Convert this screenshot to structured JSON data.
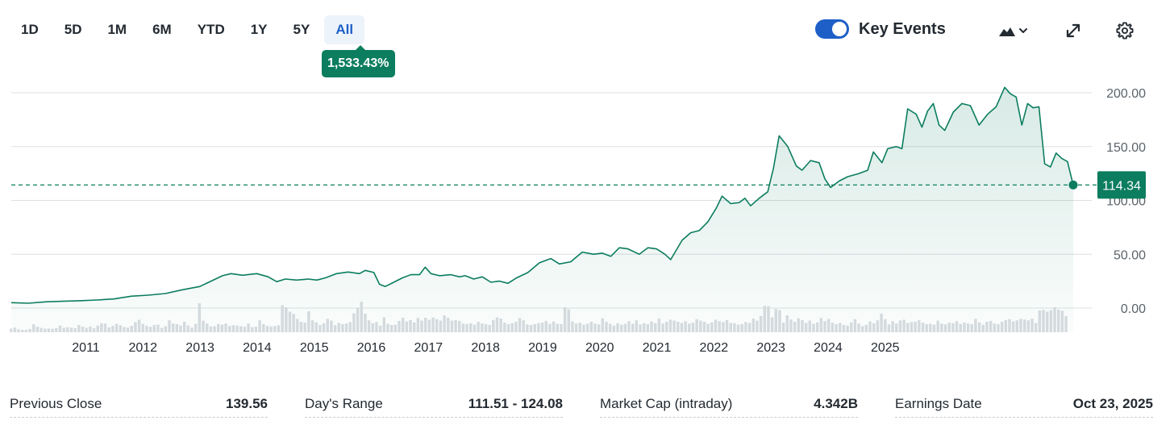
{
  "ranges": [
    "1D",
    "5D",
    "1M",
    "6M",
    "YTD",
    "1Y",
    "5Y",
    "All"
  ],
  "active_range": "All",
  "return_badge": "1,533.43%",
  "key_events": {
    "label": "Key Events",
    "enabled": true
  },
  "toolbar": {
    "chart_type_icon": "mountain-chart-icon",
    "expand_icon": "expand-icon",
    "settings_icon": "gear-icon"
  },
  "colors": {
    "line": "#0c7d5f",
    "accent": "#1d5fc7",
    "grid": "#dcdfe3",
    "volume": "#d9dde1"
  },
  "chart_data": {
    "type": "area",
    "x_tick_labels": [
      "2011",
      "2012",
      "2013",
      "2014",
      "2015",
      "2016",
      "2017",
      "2018",
      "2019",
      "2020",
      "2021",
      "2022",
      "2023",
      "2024",
      "2025"
    ],
    "y_tick_labels": [
      "200.00",
      "150.00",
      "100.00",
      "50.00",
      "0.00"
    ],
    "ylim": [
      0,
      200
    ],
    "current_price": "114.34",
    "current_value": 114.34,
    "grid": true,
    "points": [
      [
        2010.7,
        5.0
      ],
      [
        2011.0,
        4.5
      ],
      [
        2011.3,
        5.8
      ],
      [
        2011.6,
        6.3
      ],
      [
        2011.9,
        6.8
      ],
      [
        2012.2,
        7.5
      ],
      [
        2012.5,
        8.5
      ],
      [
        2012.8,
        11.0
      ],
      [
        2013.1,
        12.0
      ],
      [
        2013.4,
        13.5
      ],
      [
        2013.7,
        17.0
      ],
      [
        2014.0,
        20.0
      ],
      [
        2014.2,
        25.0
      ],
      [
        2014.4,
        30.0
      ],
      [
        2014.55,
        32.0
      ],
      [
        2014.75,
        30.5
      ],
      [
        2015.0,
        32.0
      ],
      [
        2015.2,
        29.0
      ],
      [
        2015.35,
        24.5
      ],
      [
        2015.5,
        27.0
      ],
      [
        2015.7,
        26.0
      ],
      [
        2015.9,
        27.0
      ],
      [
        2016.05,
        26.0
      ],
      [
        2016.2,
        28.0
      ],
      [
        2016.4,
        32.0
      ],
      [
        2016.6,
        33.5
      ],
      [
        2016.8,
        32.0
      ],
      [
        2016.9,
        35.0
      ],
      [
        2017.05,
        33.0
      ],
      [
        2017.15,
        22.0
      ],
      [
        2017.25,
        20.0
      ],
      [
        2017.4,
        24.0
      ],
      [
        2017.55,
        28.0
      ],
      [
        2017.7,
        31.0
      ],
      [
        2017.85,
        31.0
      ],
      [
        2017.95,
        38.0
      ],
      [
        2018.05,
        32.0
      ],
      [
        2018.2,
        30.0
      ],
      [
        2018.4,
        31.0
      ],
      [
        2018.55,
        29.0
      ],
      [
        2018.65,
        30.0
      ],
      [
        2018.8,
        27.0
      ],
      [
        2018.95,
        29.0
      ],
      [
        2019.1,
        24.0
      ],
      [
        2019.25,
        25.0
      ],
      [
        2019.4,
        23.0
      ],
      [
        2019.55,
        28.0
      ],
      [
        2019.75,
        33.0
      ],
      [
        2019.95,
        42.0
      ],
      [
        2020.15,
        46.0
      ],
      [
        2020.3,
        41.0
      ],
      [
        2020.5,
        43.0
      ],
      [
        2020.7,
        52.0
      ],
      [
        2020.9,
        50.0
      ],
      [
        2021.05,
        51.0
      ],
      [
        2021.2,
        48.0
      ],
      [
        2021.35,
        56.0
      ],
      [
        2021.5,
        55.0
      ],
      [
        2021.7,
        50.0
      ],
      [
        2021.85,
        56.0
      ],
      [
        2022.0,
        55.0
      ],
      [
        2022.15,
        50.0
      ],
      [
        2022.25,
        45.0
      ],
      [
        2022.45,
        63.0
      ],
      [
        2022.6,
        70.0
      ],
      [
        2022.75,
        72.0
      ],
      [
        2022.9,
        80.0
      ],
      [
        2023.05,
        93.0
      ],
      [
        2023.15,
        104.0
      ],
      [
        2023.3,
        97.0
      ],
      [
        2023.45,
        98.0
      ],
      [
        2023.55,
        102.0
      ],
      [
        2023.65,
        95.0
      ],
      [
        2023.8,
        102.0
      ],
      [
        2023.95,
        108.0
      ],
      [
        2024.05,
        130.0
      ],
      [
        2024.15,
        160.0
      ],
      [
        2024.3,
        150.0
      ],
      [
        2024.45,
        132.0
      ],
      [
        2024.55,
        128.0
      ],
      [
        2024.7,
        137.0
      ],
      [
        2024.85,
        135.0
      ],
      [
        2024.95,
        120.0
      ],
      [
        2025.05,
        112.0
      ],
      [
        2025.2,
        118.0
      ],
      [
        2025.35,
        122.0
      ],
      [
        2025.55,
        125.0
      ],
      [
        2025.7,
        128.0
      ],
      [
        2025.8,
        145.0
      ],
      [
        2025.95,
        135.0
      ],
      [
        2026.05,
        148.0
      ],
      [
        2026.2,
        150.0
      ],
      [
        2026.3,
        148.0
      ],
      [
        2026.4,
        185.0
      ],
      [
        2026.55,
        180.0
      ],
      [
        2026.65,
        168.0
      ],
      [
        2026.75,
        183.0
      ],
      [
        2026.85,
        190.0
      ],
      [
        2026.95,
        170.0
      ],
      [
        2027.05,
        165.0
      ],
      [
        2027.2,
        182.0
      ],
      [
        2027.35,
        190.0
      ],
      [
        2027.5,
        188.0
      ],
      [
        2027.65,
        170.0
      ],
      [
        2027.8,
        180.0
      ],
      [
        2027.95,
        187.0
      ],
      [
        2028.1,
        205.0
      ],
      [
        2028.2,
        199.0
      ],
      [
        2028.3,
        196.0
      ],
      [
        2028.4,
        170.0
      ],
      [
        2028.5,
        190.0
      ],
      [
        2028.6,
        186.0
      ],
      [
        2028.7,
        187.0
      ],
      [
        2028.8,
        134.0
      ],
      [
        2028.9,
        131.0
      ],
      [
        2029.0,
        144.0
      ],
      [
        2029.1,
        139.0
      ],
      [
        2029.2,
        136.0
      ],
      [
        2029.3,
        114.3
      ]
    ],
    "x_tick_positions": [
      2011.3,
      2012.3,
      2013.3,
      2014.3,
      2015.3,
      2016.3,
      2017.3,
      2018.3,
      2019.3,
      2020.3,
      2021.3,
      2022.3,
      2023.3,
      2024.3,
      2025.3
    ],
    "volume_relative": [
      0.25,
      0.32,
      0.2,
      0.15,
      0.12,
      0.22,
      0.55,
      0.38,
      0.3,
      0.25,
      0.26,
      0.24,
      0.28,
      0.46,
      0.3,
      0.34,
      0.32,
      0.28,
      0.5,
      0.38,
      0.3,
      0.4,
      0.28,
      0.46,
      0.62,
      0.6,
      0.34,
      0.44,
      0.58,
      0.48,
      0.36,
      0.32,
      0.44,
      0.7,
      0.86,
      0.58,
      0.45,
      0.38,
      0.5,
      0.52,
      0.3,
      0.42,
      0.82,
      0.6,
      0.56,
      0.46,
      0.72,
      0.46,
      0.32,
      0.58,
      2.0,
      0.8,
      0.6,
      0.4,
      0.42,
      0.56,
      0.52,
      0.6,
      0.44,
      0.48,
      0.46,
      0.42,
      0.38,
      0.6,
      0.36,
      0.38,
      0.82,
      0.56,
      0.44,
      0.4,
      0.42,
      0.48,
      1.86,
      1.72,
      1.42,
      1.26,
      0.92,
      0.72,
      0.66,
      1.44,
      0.82,
      0.68,
      0.5,
      0.62,
      0.92,
      0.8,
      0.48,
      0.64,
      0.56,
      0.6,
      0.7,
      1.3,
      1.68,
      2.1,
      1.28,
      0.82,
      0.62,
      0.7,
      0.46,
      1.02,
      0.58,
      0.5,
      0.52,
      0.78,
      1.0,
      0.74,
      0.84,
      0.68,
      0.98,
      0.8,
      1.0,
      0.86,
      1.02,
      0.9,
      0.8,
      1.16,
      1.0,
      0.8,
      0.84,
      0.78,
      0.6,
      0.56,
      0.62,
      0.52,
      0.72,
      0.6,
      0.56,
      0.5,
      0.84,
      1.02,
      0.94,
      0.66,
      0.56,
      0.62,
      0.72,
      0.98,
      0.82,
      0.54,
      0.5,
      0.56,
      0.62,
      0.66,
      0.78,
      0.58,
      0.74,
      0.58,
      0.56,
      1.72,
      1.58,
      0.74,
      0.6,
      0.66,
      0.52,
      0.58,
      0.72,
      0.6,
      0.54,
      0.96,
      0.72,
      0.58,
      0.46,
      0.62,
      0.52,
      0.58,
      0.76,
      0.58,
      0.82,
      0.54,
      0.62,
      0.56,
      0.74,
      0.62,
      0.94,
      0.6,
      0.72,
      0.86,
      0.8,
      0.72,
      0.64,
      0.76,
      0.6,
      0.66,
      0.9,
      0.8,
      0.72,
      0.58,
      0.68,
      0.86,
      0.76,
      0.7,
      0.84,
      0.64,
      0.62,
      0.52,
      0.56,
      0.7,
      0.64,
      0.94,
      0.8,
      1.12,
      1.82,
      1.8,
      1.02,
      1.6,
      1.52,
      0.66,
      1.16,
      0.88,
      0.72,
      0.96,
      0.84,
      0.64,
      0.8,
      0.58,
      0.68,
      0.98,
      0.76,
      0.92,
      0.66,
      0.56,
      0.64,
      0.5,
      0.46,
      0.68,
      0.9,
      0.6,
      0.42,
      0.52,
      0.74,
      0.62,
      0.82,
      1.28,
      0.9,
      0.54,
      0.76,
      0.6,
      0.82,
      0.86,
      0.64,
      0.7,
      0.72,
      0.82,
      0.66,
      0.56,
      0.58,
      0.52,
      0.8,
      0.6,
      0.54,
      0.66,
      0.62,
      0.76,
      0.56,
      0.66,
      0.6,
      0.56,
      0.92,
      0.68,
      0.52,
      0.72,
      0.78,
      0.6,
      0.56,
      0.72,
      0.84,
      0.9,
      0.74,
      0.82,
      0.92,
      0.88,
      0.82,
      0.94,
      0.64,
      1.5,
      1.54,
      1.42,
      1.52,
      1.72,
      1.56,
      1.48,
      1.1
    ]
  },
  "stats": [
    {
      "label": "Previous Close",
      "value": "139.56"
    },
    {
      "label": "Day's Range",
      "value": "111.51 - 124.08"
    },
    {
      "label": "Market Cap (intraday)",
      "value": "4.342B"
    },
    {
      "label": "Earnings Date",
      "value": "Oct 23, 2025"
    }
  ]
}
